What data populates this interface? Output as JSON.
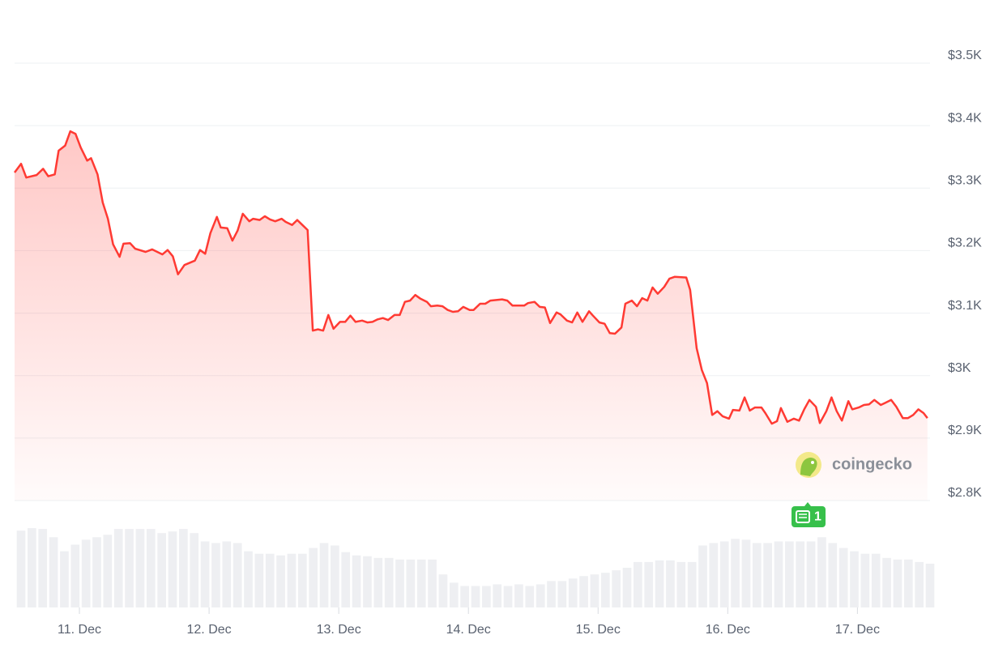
{
  "chart_data": {
    "type": "line",
    "watermark": "coingecko",
    "news_badge": "1",
    "xlim": [
      10.5,
      17.56
    ],
    "xticks": [
      {
        "value": 11,
        "label": "11. Dec"
      },
      {
        "value": 12,
        "label": "12. Dec"
      },
      {
        "value": 13,
        "label": "13. Dec"
      },
      {
        "value": 14,
        "label": "14. Dec"
      },
      {
        "value": 15,
        "label": "15. Dec"
      },
      {
        "value": 16,
        "label": "16. Dec"
      },
      {
        "value": 17,
        "label": "17. Dec"
      }
    ],
    "ylim": [
      2800,
      3500
    ],
    "yticks": [
      {
        "value": 2800,
        "label": "$2.8K"
      },
      {
        "value": 2900,
        "label": "$2.9K"
      },
      {
        "value": 3000,
        "label": "$3K"
      },
      {
        "value": 3100,
        "label": "$3.1K"
      },
      {
        "value": 3200,
        "label": "$3.2K"
      },
      {
        "value": 3300,
        "label": "$3.3K"
      },
      {
        "value": 3400,
        "label": "$3.4K"
      },
      {
        "value": 3500,
        "label": "$3.5K"
      }
    ],
    "grid": true,
    "color": "#ff3a33",
    "x": [
      10.5,
      10.55,
      10.59,
      10.67,
      10.72,
      10.76,
      10.81,
      10.84,
      10.89,
      10.93,
      10.97,
      11.01,
      11.06,
      11.09,
      11.14,
      11.18,
      11.22,
      11.26,
      11.31,
      11.34,
      11.39,
      11.43,
      11.51,
      11.56,
      11.64,
      11.68,
      11.72,
      11.76,
      11.81,
      11.89,
      11.93,
      11.97,
      12.01,
      12.06,
      12.09,
      12.14,
      12.18,
      12.22,
      12.26,
      12.31,
      12.34,
      12.39,
      12.43,
      12.47,
      12.51,
      12.56,
      12.59,
      12.64,
      12.68,
      12.72,
      12.76,
      12.8,
      12.84,
      12.88,
      12.92,
      12.96,
      13.01,
      13.05,
      13.09,
      13.13,
      13.18,
      13.22,
      13.26,
      13.3,
      13.34,
      13.38,
      13.43,
      13.47,
      13.51,
      13.55,
      13.59,
      13.63,
      13.68,
      13.71,
      13.76,
      13.8,
      13.84,
      13.88,
      13.92,
      13.96,
      14.01,
      14.04,
      14.09,
      14.13,
      14.17,
      14.26,
      14.3,
      14.34,
      14.43,
      14.46,
      14.51,
      14.55,
      14.59,
      14.63,
      14.68,
      14.71,
      14.76,
      14.8,
      14.84,
      14.88,
      14.93,
      14.96,
      15.01,
      15.05,
      15.09,
      15.13,
      15.18,
      15.21,
      15.26,
      15.3,
      15.34,
      15.38,
      15.42,
      15.46,
      15.51,
      15.55,
      15.59,
      15.68,
      15.71,
      15.76,
      15.8,
      15.84,
      15.88,
      15.92,
      15.96,
      16.01,
      16.04,
      16.09,
      16.13,
      16.17,
      16.21,
      16.26,
      16.29,
      16.34,
      16.38,
      16.41,
      16.46,
      16.51,
      16.55,
      16.59,
      16.63,
      16.68,
      16.71,
      16.76,
      16.8,
      16.84,
      16.88,
      16.93,
      16.96,
      17.01,
      17.05,
      17.09,
      17.13,
      17.18,
      17.21,
      17.26,
      17.3,
      17.35,
      17.39,
      17.43,
      17.47,
      17.51,
      17.54
    ],
    "values": [
      3325,
      3339,
      3317,
      3321,
      3331,
      3319,
      3322,
      3360,
      3368,
      3391,
      3387,
      3365,
      3344,
      3348,
      3322,
      3277,
      3251,
      3210,
      3190,
      3211,
      3212,
      3203,
      3198,
      3202,
      3194,
      3201,
      3191,
      3162,
      3177,
      3184,
      3201,
      3195,
      3228,
      3254,
      3237,
      3236,
      3216,
      3232,
      3259,
      3247,
      3251,
      3249,
      3255,
      3250,
      3247,
      3251,
      3246,
      3241,
      3249,
      3241,
      3233,
      3072,
      3074,
      3072,
      3097,
      3075,
      3086,
      3086,
      3096,
      3086,
      3088,
      3085,
      3086,
      3090,
      3092,
      3089,
      3097,
      3097,
      3118,
      3120,
      3129,
      3123,
      3118,
      3111,
      3112,
      3111,
      3105,
      3102,
      3103,
      3110,
      3105,
      3105,
      3115,
      3115,
      3120,
      3122,
      3120,
      3112,
      3112,
      3116,
      3118,
      3110,
      3109,
      3084,
      3101,
      3098,
      3088,
      3085,
      3101,
      3086,
      3103,
      3096,
      3085,
      3083,
      3068,
      3067,
      3077,
      3115,
      3120,
      3111,
      3124,
      3120,
      3141,
      3131,
      3142,
      3155,
      3158,
      3157,
      3137,
      3044,
      3009,
      2988,
      2937,
      2943,
      2935,
      2931,
      2945,
      2944,
      2965,
      2944,
      2949,
      2949,
      2940,
      2923,
      2927,
      2948,
      2926,
      2931,
      2928,
      2946,
      2961,
      2950,
      2924,
      2943,
      2965,
      2943,
      2928,
      2959,
      2946,
      2949,
      2953,
      2954,
      2961,
      2953,
      2956,
      2961,
      2950,
      2932,
      2932,
      2937,
      2946,
      2940,
      2932
    ],
    "volume": {
      "color": "#eeeff2",
      "ylim": [
        0,
        100
      ],
      "values": [
        93,
        96,
        95,
        85,
        68,
        76,
        82,
        85,
        88,
        95,
        95,
        95,
        95,
        90,
        92,
        95,
        90,
        80,
        78,
        80,
        78,
        68,
        65,
        65,
        63,
        65,
        65,
        72,
        78,
        75,
        67,
        63,
        62,
        60,
        60,
        58,
        58,
        58,
        58,
        40,
        30,
        26,
        26,
        26,
        28,
        26,
        28,
        26,
        28,
        32,
        32,
        35,
        38,
        40,
        42,
        45,
        48,
        55,
        55,
        57,
        57,
        55,
        55,
        75,
        78,
        80,
        83,
        82,
        78,
        78,
        80,
        80,
        80,
        80,
        85,
        78,
        72,
        68,
        65,
        65,
        60,
        58,
        58,
        55,
        53
      ]
    }
  }
}
